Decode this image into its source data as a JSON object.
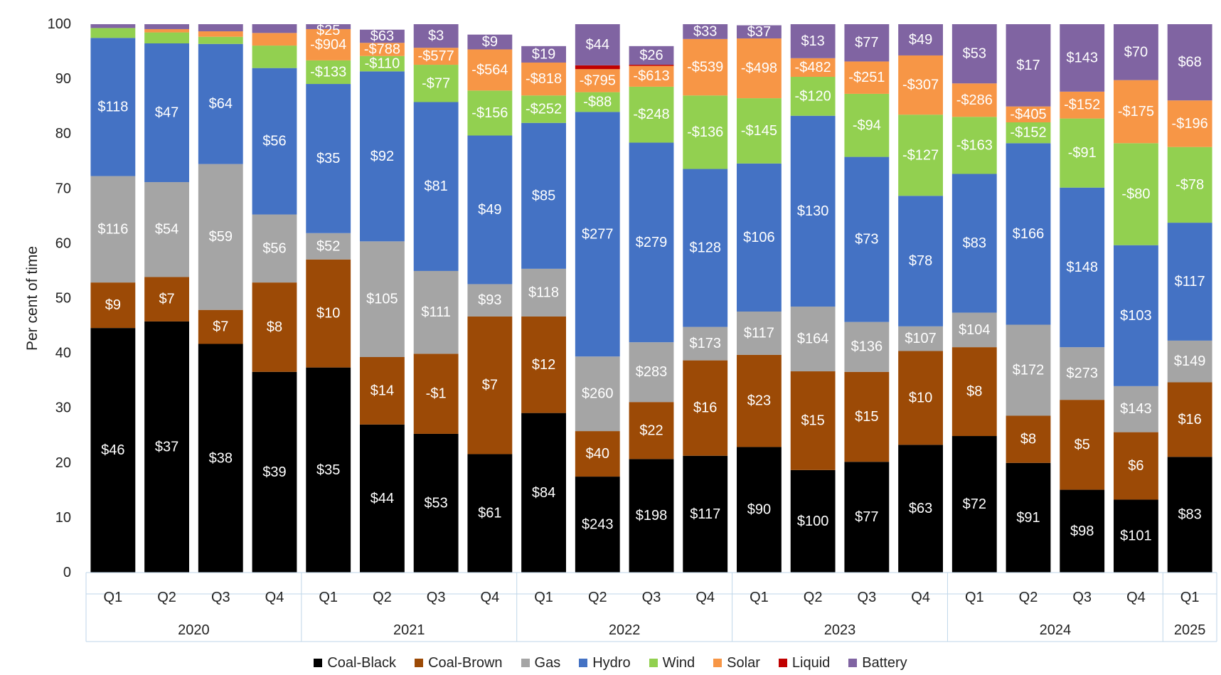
{
  "chart_data": {
    "type": "bar",
    "stacked": true,
    "ylabel": "Per cent of time",
    "ylim": [
      0,
      100
    ],
    "yticks": [
      0,
      10,
      20,
      30,
      40,
      50,
      60,
      70,
      80,
      90,
      100
    ],
    "grid": false,
    "legend_position": "bottom",
    "groups": [
      {
        "year": "2020",
        "quarters": [
          "Q1",
          "Q2",
          "Q3",
          "Q4"
        ]
      },
      {
        "year": "2021",
        "quarters": [
          "Q1",
          "Q2",
          "Q3",
          "Q4"
        ]
      },
      {
        "year": "2022",
        "quarters": [
          "Q1",
          "Q2",
          "Q3",
          "Q4"
        ]
      },
      {
        "year": "2023",
        "quarters": [
          "Q1",
          "Q2",
          "Q3",
          "Q4"
        ]
      },
      {
        "year": "2024",
        "quarters": [
          "Q1",
          "Q2",
          "Q3",
          "Q4"
        ]
      },
      {
        "year": "2025",
        "quarters": [
          "Q1"
        ]
      }
    ],
    "series": [
      {
        "name": "Coal-Black",
        "color": "#000000",
        "values": [
          44.6,
          45.8,
          41.7,
          36.6,
          37.4,
          27.0,
          25.3,
          21.6,
          29.1,
          17.5,
          20.7,
          21.3,
          22.9,
          18.7,
          20.2,
          23.3,
          24.9,
          20.0,
          15.1,
          13.3,
          21.1
        ],
        "labels": [
          "$46",
          "$37",
          "$38",
          "$39",
          "$35",
          "$44",
          "$53",
          "$61",
          "$84",
          "$243",
          "$198",
          "$117",
          "$90",
          "$100",
          "$77",
          "$63",
          "$72",
          "$91",
          "$98",
          "$101",
          "$83"
        ]
      },
      {
        "name": "Coal-Brown",
        "color": "#9c4a06",
        "values": [
          8.3,
          8.1,
          6.2,
          16.3,
          19.7,
          12.3,
          14.6,
          25.1,
          17.6,
          8.3,
          10.4,
          17.4,
          16.8,
          18.0,
          16.4,
          17.1,
          16.2,
          8.6,
          16.4,
          12.3,
          13.6
        ],
        "labels": [
          "$9",
          "$7",
          "$7",
          "$8",
          "$10",
          "$14",
          "-$1",
          "$7",
          "$12",
          "$40",
          "$22",
          "$16",
          "$23",
          "$15",
          "$15",
          "$10",
          "$8",
          "$8",
          "$5",
          "$6",
          "$16"
        ]
      },
      {
        "name": "Gas",
        "color": "#a5a5a5",
        "values": [
          19.4,
          17.3,
          26.6,
          12.4,
          4.8,
          21.1,
          15.1,
          5.9,
          8.7,
          13.6,
          10.9,
          6.1,
          7.9,
          11.8,
          9.1,
          4.5,
          6.3,
          16.6,
          9.6,
          8.4,
          7.6
        ],
        "labels": [
          "$116",
          "$54",
          "$59",
          "$56",
          "$52",
          "$105",
          "$111",
          "$93",
          "$118",
          "$260",
          "$283",
          "$173",
          "$117",
          "$164",
          "$136",
          "$107",
          "$104",
          "$172",
          "$273",
          "$143",
          "$149"
        ]
      },
      {
        "name": "Hydro",
        "color": "#4472c4",
        "values": [
          25.2,
          25.3,
          21.9,
          26.7,
          27.2,
          31.0,
          30.8,
          27.1,
          26.6,
          44.6,
          36.4,
          28.8,
          27.0,
          34.8,
          30.1,
          23.8,
          25.3,
          33.1,
          29.1,
          25.7,
          21.5
        ],
        "labels": [
          "$118",
          "$47",
          "$64",
          "$56",
          "$35",
          "$92",
          "$81",
          "$49",
          "$85",
          "$277",
          "$279",
          "$128",
          "$106",
          "$130",
          "$73",
          "$78",
          "$83",
          "$166",
          "$148",
          "$103",
          "$117"
        ]
      },
      {
        "name": "Wind",
        "color": "#92d050",
        "values": [
          1.8,
          2.0,
          1.3,
          4.1,
          4.3,
          2.8,
          6.8,
          8.2,
          5.0,
          3.6,
          10.2,
          13.4,
          11.9,
          7.1,
          11.5,
          14.8,
          10.4,
          3.8,
          12.6,
          18.6,
          13.8
        ],
        "labels": [
          "",
          "",
          "",
          "",
          "-$133",
          "-$110",
          "-$77",
          "-$156",
          "-$252",
          "-$88",
          "-$248",
          "-$136",
          "-$145",
          "-$120",
          "-$94",
          "-$127",
          "-$163",
          "-$152",
          "-$91",
          "-$80",
          "-$78"
        ]
      },
      {
        "name": "Solar",
        "color": "#f79646",
        "values": [
          0.0,
          0.6,
          1.0,
          2.3,
          5.7,
          2.4,
          3.1,
          7.5,
          6.0,
          4.2,
          3.8,
          10.3,
          10.9,
          3.4,
          5.9,
          10.8,
          6.1,
          2.9,
          4.9,
          11.5,
          8.5
        ],
        "labels": [
          "",
          "",
          "",
          "",
          "-$904",
          "-$788",
          "-$577",
          "-$564",
          "-$818",
          "-$795",
          "-$613",
          "-$539",
          "-$498",
          "-$482",
          "-$251",
          "-$307",
          "-$286",
          "-$405",
          "-$152",
          "-$175",
          "-$196"
        ]
      },
      {
        "name": "Liquid",
        "color": "#c00000",
        "values": [
          0.0,
          0.0,
          0.0,
          0.0,
          0.0,
          0.0,
          0.0,
          0.0,
          0.0,
          0.7,
          0.2,
          0.0,
          0.0,
          0.0,
          0.0,
          0.0,
          0.0,
          0.0,
          0.0,
          0.0,
          0.0
        ],
        "labels": [
          "",
          "",
          "",
          "",
          "",
          "",
          "",
          "",
          "",
          "",
          "",
          "",
          "",
          "",
          "",
          "",
          "",
          "",
          "",
          "",
          ""
        ]
      },
      {
        "name": "Battery",
        "color": "#8064a2",
        "values": [
          0.7,
          0.9,
          1.3,
          1.6,
          0.9,
          2.4,
          4.3,
          2.7,
          3.0,
          7.5,
          3.4,
          2.7,
          2.4,
          6.2,
          6.8,
          5.7,
          10.8,
          15.0,
          12.3,
          10.2,
          13.9
        ],
        "labels": [
          "",
          "",
          "",
          "",
          "$25",
          "$63",
          "$3",
          "$9",
          "$19",
          "$44",
          "$26",
          "$33",
          "$37",
          "$13",
          "$77",
          "$49",
          "$53",
          "$17",
          "$143",
          "$70",
          "$68"
        ]
      }
    ]
  }
}
